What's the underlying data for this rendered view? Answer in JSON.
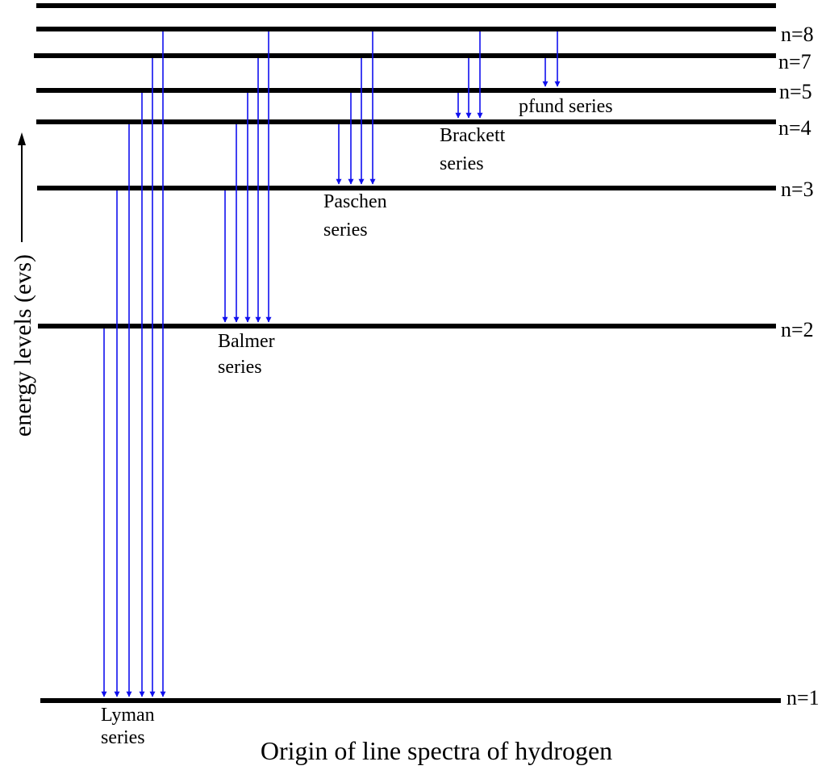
{
  "title": "Origin of line spectra of hydrogen",
  "y_axis_label": "energy levels (evs)",
  "colors": {
    "level_line": "#000000",
    "transition_arrow": "#1010ee",
    "text": "#000000"
  },
  "levels": [
    {
      "id": "top",
      "label": ""
    },
    {
      "id": "n8",
      "label": "n=8"
    },
    {
      "id": "n7",
      "label": "n=7"
    },
    {
      "id": "n5",
      "label": "n=5"
    },
    {
      "id": "n4",
      "label": "n=4"
    },
    {
      "id": "n3",
      "label": "n=3"
    },
    {
      "id": "n2",
      "label": "n=2"
    },
    {
      "id": "n1",
      "label": "n=1"
    }
  ],
  "series": [
    {
      "id": "lyman",
      "label_lines": [
        "Lyman",
        "series"
      ],
      "to": "n1",
      "from": [
        "n2",
        "n3",
        "n4",
        "n5",
        "n7",
        "n8"
      ]
    },
    {
      "id": "balmer",
      "label_lines": [
        "Balmer",
        "series"
      ],
      "to": "n2",
      "from": [
        "n3",
        "n4",
        "n5",
        "n7",
        "n8"
      ]
    },
    {
      "id": "paschen",
      "label_lines": [
        "Paschen",
        "series"
      ],
      "to": "n3",
      "from": [
        "n4",
        "n5",
        "n7",
        "n8"
      ]
    },
    {
      "id": "brackett",
      "label_lines": [
        "Brackett",
        "series"
      ],
      "to": "n4",
      "from": [
        "n5",
        "n7",
        "n8"
      ]
    },
    {
      "id": "pfund",
      "label_lines": [
        "pfund series"
      ],
      "to": "n5",
      "from": [
        "n7",
        "n8"
      ]
    }
  ]
}
